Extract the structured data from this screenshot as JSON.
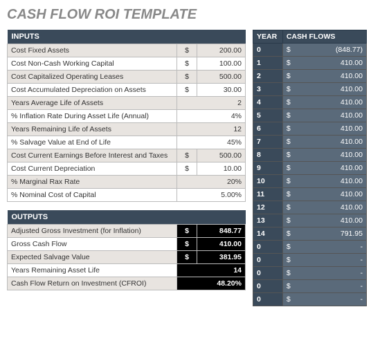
{
  "title": "CASH FLOW ROI TEMPLATE",
  "inputs": {
    "header": "INPUTS",
    "rows": [
      {
        "label": "Cost Fixed Assets",
        "dollar": "$",
        "value": "200.00"
      },
      {
        "label": "Cost Non-Cash Working Capital",
        "dollar": "$",
        "value": "100.00"
      },
      {
        "label": "Cost Capitalized Operating Leases",
        "dollar": "$",
        "value": "500.00"
      },
      {
        "label": "Cost Accumulated Depreciation on Assets",
        "dollar": "$",
        "value": "30.00"
      },
      {
        "label": "Years Average Life of Assets",
        "dollar": "",
        "value": "2"
      },
      {
        "label": "% Inflation Rate During Asset Life (Annual)",
        "dollar": "",
        "value": "4%"
      },
      {
        "label": "Years Remaining Life of Assets",
        "dollar": "",
        "value": "12"
      },
      {
        "label": "% Salvage Value at End of Life",
        "dollar": "",
        "value": "45%"
      },
      {
        "label": "Cost Current Earnings Before Interest and Taxes",
        "dollar": "$",
        "value": "500.00"
      },
      {
        "label": "Cost Current Depreciation",
        "dollar": "$",
        "value": "10.00"
      },
      {
        "label": "% Marginal Rax Rate",
        "dollar": "",
        "value": "20%"
      },
      {
        "label": "% Nominal Cost of Capital",
        "dollar": "",
        "value": "5.00%"
      }
    ]
  },
  "outputs": {
    "header": "OUTPUTS",
    "rows": [
      {
        "label": "Adjusted Gross Investment (for Inflation)",
        "dollar": "$",
        "value": "848.77",
        "bold": true
      },
      {
        "label": "Gross Cash Flow",
        "dollar": "$",
        "value": "410.00",
        "bold": true
      },
      {
        "label": "Expected Salvage Value",
        "dollar": "$",
        "value": "381.95",
        "bold": true
      },
      {
        "label": "Years Remaining Asset Life",
        "dollar": "",
        "value": "14",
        "bold": true
      },
      {
        "label": "Cash Flow Return on Investment (CFROI)",
        "dollar": "",
        "value": "48.20%",
        "bold": true
      }
    ]
  },
  "cashflow": {
    "header_year": "YEAR",
    "header_cf": "CASH FLOWS",
    "rows": [
      {
        "year": "0",
        "dollar": "$",
        "value": "(848.77)"
      },
      {
        "year": "1",
        "dollar": "$",
        "value": "410.00"
      },
      {
        "year": "2",
        "dollar": "$",
        "value": "410.00"
      },
      {
        "year": "3",
        "dollar": "$",
        "value": "410.00"
      },
      {
        "year": "4",
        "dollar": "$",
        "value": "410.00"
      },
      {
        "year": "5",
        "dollar": "$",
        "value": "410.00"
      },
      {
        "year": "6",
        "dollar": "$",
        "value": "410.00"
      },
      {
        "year": "7",
        "dollar": "$",
        "value": "410.00"
      },
      {
        "year": "8",
        "dollar": "$",
        "value": "410.00"
      },
      {
        "year": "9",
        "dollar": "$",
        "value": "410.00"
      },
      {
        "year": "10",
        "dollar": "$",
        "value": "410.00"
      },
      {
        "year": "11",
        "dollar": "$",
        "value": "410.00"
      },
      {
        "year": "12",
        "dollar": "$",
        "value": "410.00"
      },
      {
        "year": "13",
        "dollar": "$",
        "value": "410.00"
      },
      {
        "year": "14",
        "dollar": "$",
        "value": "791.95"
      },
      {
        "year": "0",
        "dollar": "$",
        "value": "-"
      },
      {
        "year": "0",
        "dollar": "$",
        "value": "-"
      },
      {
        "year": "0",
        "dollar": "$",
        "value": "-"
      },
      {
        "year": "0",
        "dollar": "$",
        "value": "-"
      },
      {
        "year": "0",
        "dollar": "$",
        "value": "-"
      }
    ]
  }
}
